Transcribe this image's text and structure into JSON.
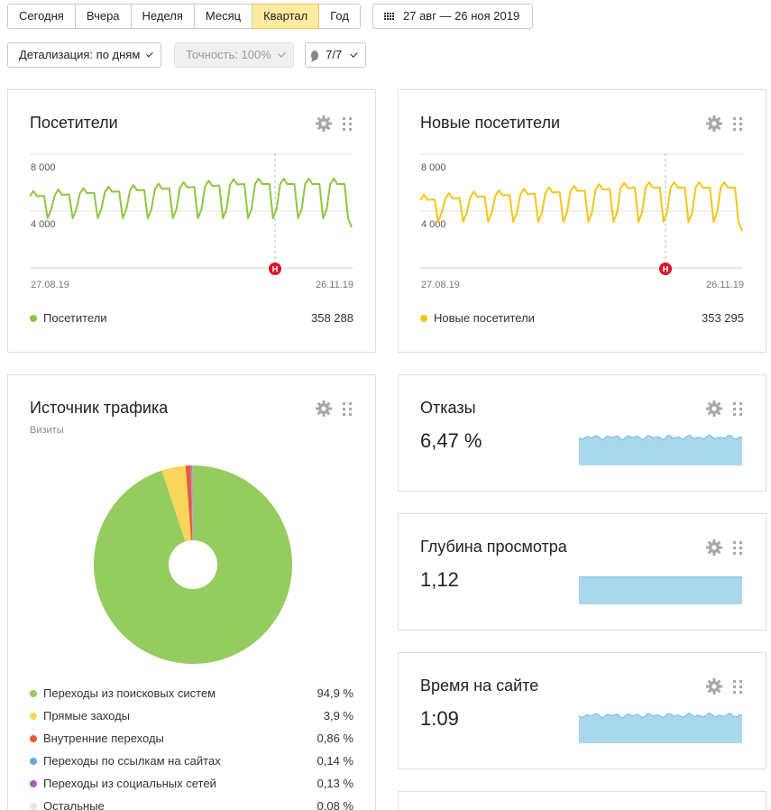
{
  "toolbar": {
    "periods": [
      "Сегодня",
      "Вчера",
      "Неделя",
      "Месяц",
      "Квартал",
      "Год"
    ],
    "active_period": "Квартал",
    "date_range": "27 авг — 26 ноя 2019",
    "detail": "Детализация: по дням",
    "accuracy": "Точность: 100%",
    "annotations": "7/7"
  },
  "visitors": {
    "title": "Посетители",
    "y_top": "8 000",
    "y_mid": "4 000",
    "date_start": "27.08.19",
    "date_end": "26.11.19",
    "marker": "Н",
    "legend": "Посетители",
    "total": "358 288",
    "color": "#8dc63f"
  },
  "new_visitors": {
    "title": "Новые посетители",
    "y_top": "8 000",
    "y_mid": "4 000",
    "date_start": "27.08.19",
    "date_end": "26.11.19",
    "marker": "Н",
    "legend": "Новые посетители",
    "total": "353 295",
    "color": "#f2c617"
  },
  "traffic": {
    "title": "Источник трафика",
    "subtitle": "Визиты",
    "items": [
      {
        "label": "Переходы из поисковых систем",
        "value": "94,9 %",
        "pct": 94.9,
        "color": "#95cc5f"
      },
      {
        "label": "Прямые заходы",
        "value": "3,9 %",
        "pct": 3.9,
        "color": "#f8d55b"
      },
      {
        "label": "Внутренние переходы",
        "value": "0,86 %",
        "pct": 0.86,
        "color": "#f1573f"
      },
      {
        "label": "Переходы по ссылкам на сайтах",
        "value": "0,14 %",
        "pct": 0.14,
        "color": "#6aaadf"
      },
      {
        "label": "Переходы из социальных сетей",
        "value": "0,13 %",
        "pct": 0.13,
        "color": "#a95ec1"
      },
      {
        "label": "Остальные",
        "value": "0,08 %",
        "pct": 0.08,
        "color": "#e6e6e6"
      }
    ]
  },
  "bounce": {
    "title": "Отказы",
    "value": "6,47 %",
    "level": 0.78
  },
  "depth": {
    "title": "Глубина просмотра",
    "value": "1,12",
    "level": 0.55
  },
  "time": {
    "title": "Время на сайте",
    "value": "1:09",
    "level": 0.72
  },
  "colors": {
    "spark": "#a9d8ec",
    "spark_line": "#6bbad9",
    "marker": "#d9152b"
  }
}
